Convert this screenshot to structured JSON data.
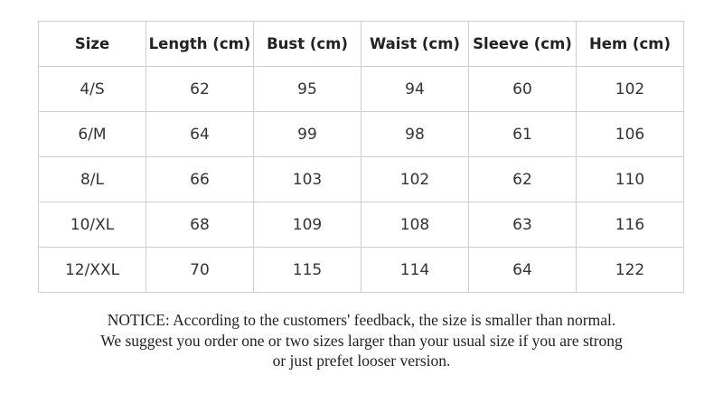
{
  "table": {
    "header": [
      "Size",
      "Length (cm)",
      "Bust (cm)",
      "Waist (cm)",
      "Sleeve (cm)",
      "Hem (cm)"
    ],
    "rows": [
      [
        "4/S",
        "62",
        "95",
        "94",
        "60",
        "102"
      ],
      [
        "6/M",
        "64",
        "99",
        "98",
        "61",
        "106"
      ],
      [
        "8/L",
        "66",
        "103",
        "102",
        "62",
        "110"
      ],
      [
        "10/XL",
        "68",
        "109",
        "108",
        "63",
        "116"
      ],
      [
        "12/XXL",
        "70",
        "115",
        "114",
        "64",
        "122"
      ]
    ]
  },
  "notice": {
    "lines": [
      "NOTICE: According to the customers' feedback, the size is smaller than normal.",
      "We suggest you order one or two sizes larger than your usual size if you are strong",
      "or just prefet looser version."
    ]
  }
}
